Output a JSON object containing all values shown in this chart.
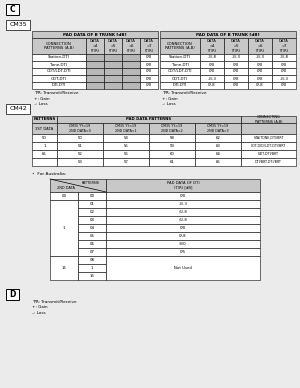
{
  "bg_color": "#ebebeb",
  "header_bg": "#c8c8c8",
  "shaded_bg": "#b8b8b8",
  "c_label": "C",
  "cm35_label": "CM35",
  "cm42_label": "CM42",
  "d_label": "D",
  "left_table": {
    "title": "PAD DATA OF B TRUNK [dB]",
    "col_headers": [
      "CONNECTION\nPATTERNS (A-B)",
      "DATA\n=4\n(T/R)",
      "DATA\n=5\n(T/R)",
      "DATA\n=6\n(T/R)",
      "DATA\n=7\n(T/R)"
    ],
    "rows": [
      [
        "Station-DTI",
        "",
        "",
        "",
        "0/0"
      ],
      [
        "Tone-DTI",
        "",
        "",
        "",
        "0/0"
      ],
      [
        "COT/LDT-DTI",
        "",
        "",
        "",
        "0/0"
      ],
      [
        "ODT-DTI",
        "",
        "",
        "",
        "0/0"
      ],
      [
        "DTI-DTI",
        "",
        "",
        "",
        "0/0"
      ]
    ],
    "shaded_cols": [
      1,
      2,
      3
    ],
    "footer": [
      "T/R: Transmit/Receive",
      "+: Gain",
      "–: Loss"
    ]
  },
  "right_table": {
    "title": "PAD DATA OF B TRUNK [dB]",
    "col_headers": [
      "CONNECTION\nPATTERNS (A-B)",
      "DATA\n=4\n(T/R)",
      "DATA\n=5\n(T/R)",
      "DATA\n=6\n(T/R)",
      "DATA\n=7\n(T/R)"
    ],
    "rows": [
      [
        "Station-DTI",
        "-3/-8",
        "-3/-3",
        "-3/-3",
        "-3/-8"
      ],
      [
        "Tone-DTI",
        "0/0",
        "0/0",
        "0/0",
        "0/0"
      ],
      [
        "COT/LDT-DTI",
        "0/0",
        "0/0",
        "0/0",
        "0/0"
      ],
      [
        "ODT-DTI",
        "-3/-3",
        "0/0",
        "0/0",
        "-3/-3"
      ],
      [
        "DTI-DTI",
        "0/-8",
        "0/0",
        "0/-8",
        "0/0"
      ]
    ],
    "footer": [
      "T/R: Transmit/Receive",
      "+: Gain",
      "–: Loss"
    ]
  },
  "cm42_table": {
    "sub_headers": [
      "CM35 YY=19\n2ND DATA=0",
      "CM35 YY=19\n2ND DATA=1",
      "CM35 YY=19\n2ND DATA=2",
      "CM35 YY=19\n2ND DATA=3"
    ],
    "rows": [
      [
        "50",
        "50",
        "54",
        "58",
        "62",
        "STA/TONE-DTI/BRT"
      ],
      [
        "1",
        "51",
        "55",
        "59",
        "63",
        "COT-DID/LDT-DTI/BRT"
      ],
      [
        "65",
        "52",
        "56",
        "60",
        "64",
        "ODT-DTI/BRT"
      ],
      [
        "",
        "53",
        "57",
        "61",
        "65",
        "DTI/BRT-DTI/BRT"
      ]
    ]
  },
  "australia_label": "•  For Australia:",
  "aus_table": {
    "pad_header": "PAD DATA OF DTI\n(T/R) [dB]",
    "rows2nd": [
      "00",
      "1",
      "15"
    ],
    "rows2nd_spans": [
      1,
      7,
      1
    ],
    "patterns_col": [
      "00",
      "01",
      "02",
      "03",
      "04",
      "05",
      "06",
      "07",
      "08\n1\n15"
    ],
    "pad_col": [
      "0/0",
      "-3/-3",
      "-6/-8",
      "-6/-8",
      "0/0",
      "0/-8",
      "-8/0",
      "0/5",
      "Not Used"
    ],
    "last_row_spans": 3
  },
  "d_footer": [
    "T/R: Transmit/Receive",
    "+: Gain",
    "–: Loss"
  ]
}
